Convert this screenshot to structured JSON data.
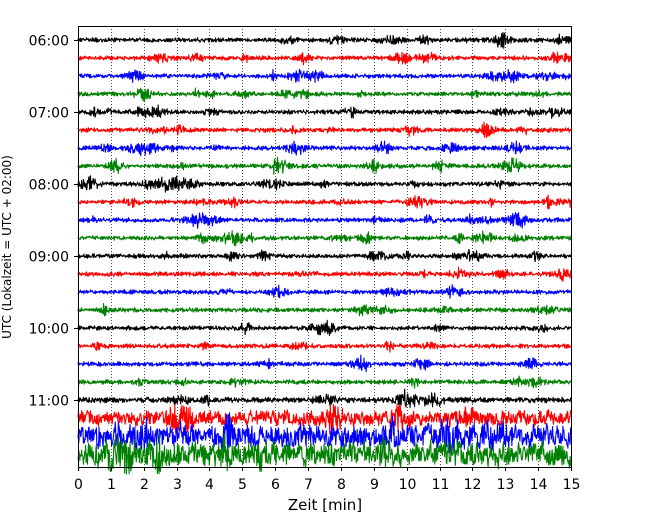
{
  "chart_data": {
    "type": "line",
    "title": "",
    "xlabel": "Zeit  [min]",
    "ylabel": "UTC (Lokalzeit = UTC + 02:00)",
    "xlim": [
      0,
      15
    ],
    "x_ticks": [
      0,
      1,
      2,
      3,
      4,
      5,
      6,
      7,
      8,
      9,
      10,
      11,
      12,
      13,
      14,
      15
    ],
    "x_tick_labels": [
      "0",
      "1",
      "2",
      "3",
      "4",
      "5",
      "6",
      "7",
      "8",
      "9",
      "10",
      "11",
      "12",
      "13",
      "14",
      "15"
    ],
    "y_tick_labels": [
      "06:00",
      "07:00",
      "08:00",
      "09:00",
      "10:00",
      "11:00"
    ],
    "trace_interval_min": 15,
    "trace_count": 24,
    "start_time": "06:00",
    "grid": "vertical dotted at each minute",
    "legend": "none",
    "trace_colors": [
      "#000000",
      "#ff0000",
      "#0000ff",
      "#008000"
    ],
    "traces": [
      {
        "start": "06:00",
        "color": "#000000",
        "amplitude": 1.0
      },
      {
        "start": "06:15",
        "color": "#ff0000",
        "amplitude": 1.0
      },
      {
        "start": "06:30",
        "color": "#0000ff",
        "amplitude": 1.0
      },
      {
        "start": "06:45",
        "color": "#008000",
        "amplitude": 1.0
      },
      {
        "start": "07:00",
        "color": "#000000",
        "amplitude": 1.0
      },
      {
        "start": "07:15",
        "color": "#ff0000",
        "amplitude": 1.0
      },
      {
        "start": "07:30",
        "color": "#0000ff",
        "amplitude": 1.0
      },
      {
        "start": "07:45",
        "color": "#008000",
        "amplitude": 1.0
      },
      {
        "start": "08:00",
        "color": "#000000",
        "amplitude": 1.0
      },
      {
        "start": "08:15",
        "color": "#ff0000",
        "amplitude": 1.0
      },
      {
        "start": "08:30",
        "color": "#0000ff",
        "amplitude": 1.0
      },
      {
        "start": "08:45",
        "color": "#008000",
        "amplitude": 1.0
      },
      {
        "start": "09:00",
        "color": "#000000",
        "amplitude": 1.0
      },
      {
        "start": "09:15",
        "color": "#ff0000",
        "amplitude": 1.0
      },
      {
        "start": "09:30",
        "color": "#0000ff",
        "amplitude": 1.0
      },
      {
        "start": "09:45",
        "color": "#008000",
        "amplitude": 1.0
      },
      {
        "start": "10:00",
        "color": "#000000",
        "amplitude": 1.0
      },
      {
        "start": "10:15",
        "color": "#ff0000",
        "amplitude": 1.0
      },
      {
        "start": "10:30",
        "color": "#0000ff",
        "amplitude": 1.0
      },
      {
        "start": "10:45",
        "color": "#008000",
        "amplitude": 1.0
      },
      {
        "start": "11:00",
        "color": "#000000",
        "amplitude": 1.2
      },
      {
        "start": "11:15",
        "color": "#ff0000",
        "amplitude": 2.0
      },
      {
        "start": "11:30",
        "color": "#0000ff",
        "amplitude": 3.0
      },
      {
        "start": "11:45",
        "color": "#008000",
        "amplitude": 3.2
      }
    ]
  }
}
